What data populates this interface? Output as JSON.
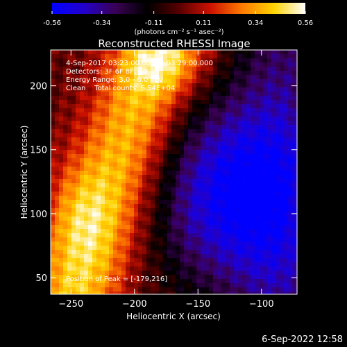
{
  "chart_data": {
    "type": "heatmap",
    "title": "Reconstructed RHESSI Image",
    "xlabel": "Heliocentric X (arcsec)",
    "ylabel": "Heliocentric Y (arcsec)",
    "xlim": [
      -266,
      -72
    ],
    "ylim": [
      37,
      228
    ],
    "x_ticks": [
      -250,
      -200,
      -150,
      -100
    ],
    "y_ticks": [
      50,
      100,
      150,
      200
    ],
    "colorbar": {
      "range": [
        -0.56,
        0.56
      ],
      "ticks": [
        "-0.56",
        "-0.34",
        "-0.11",
        "0.11",
        "0.34",
        "0.56"
      ],
      "label": "(photons cm⁻² s⁻¹ asec⁻²)",
      "colormap": [
        "#0000ff",
        "#2200cc",
        "#3a0055",
        "#000000",
        "#550000",
        "#cc1100",
        "#ff7a00",
        "#ffd400",
        "#ffffff"
      ]
    },
    "info": {
      "time_range": "4-Sep-2017 03:23:00.000 to 03:29:00.000",
      "detectors": "Detectors: 3F 6F 8F, Att 1",
      "energy": "Energy Range: 3.0 - 6.0 keV",
      "clean": "Clean    Total counts: 6.54E+04",
      "peak": "Position of Peak = [-179,216]"
    },
    "peak": [
      -179,
      216
    ]
  },
  "footer": {
    "timestamp": "6-Sep-2022 12:58"
  }
}
